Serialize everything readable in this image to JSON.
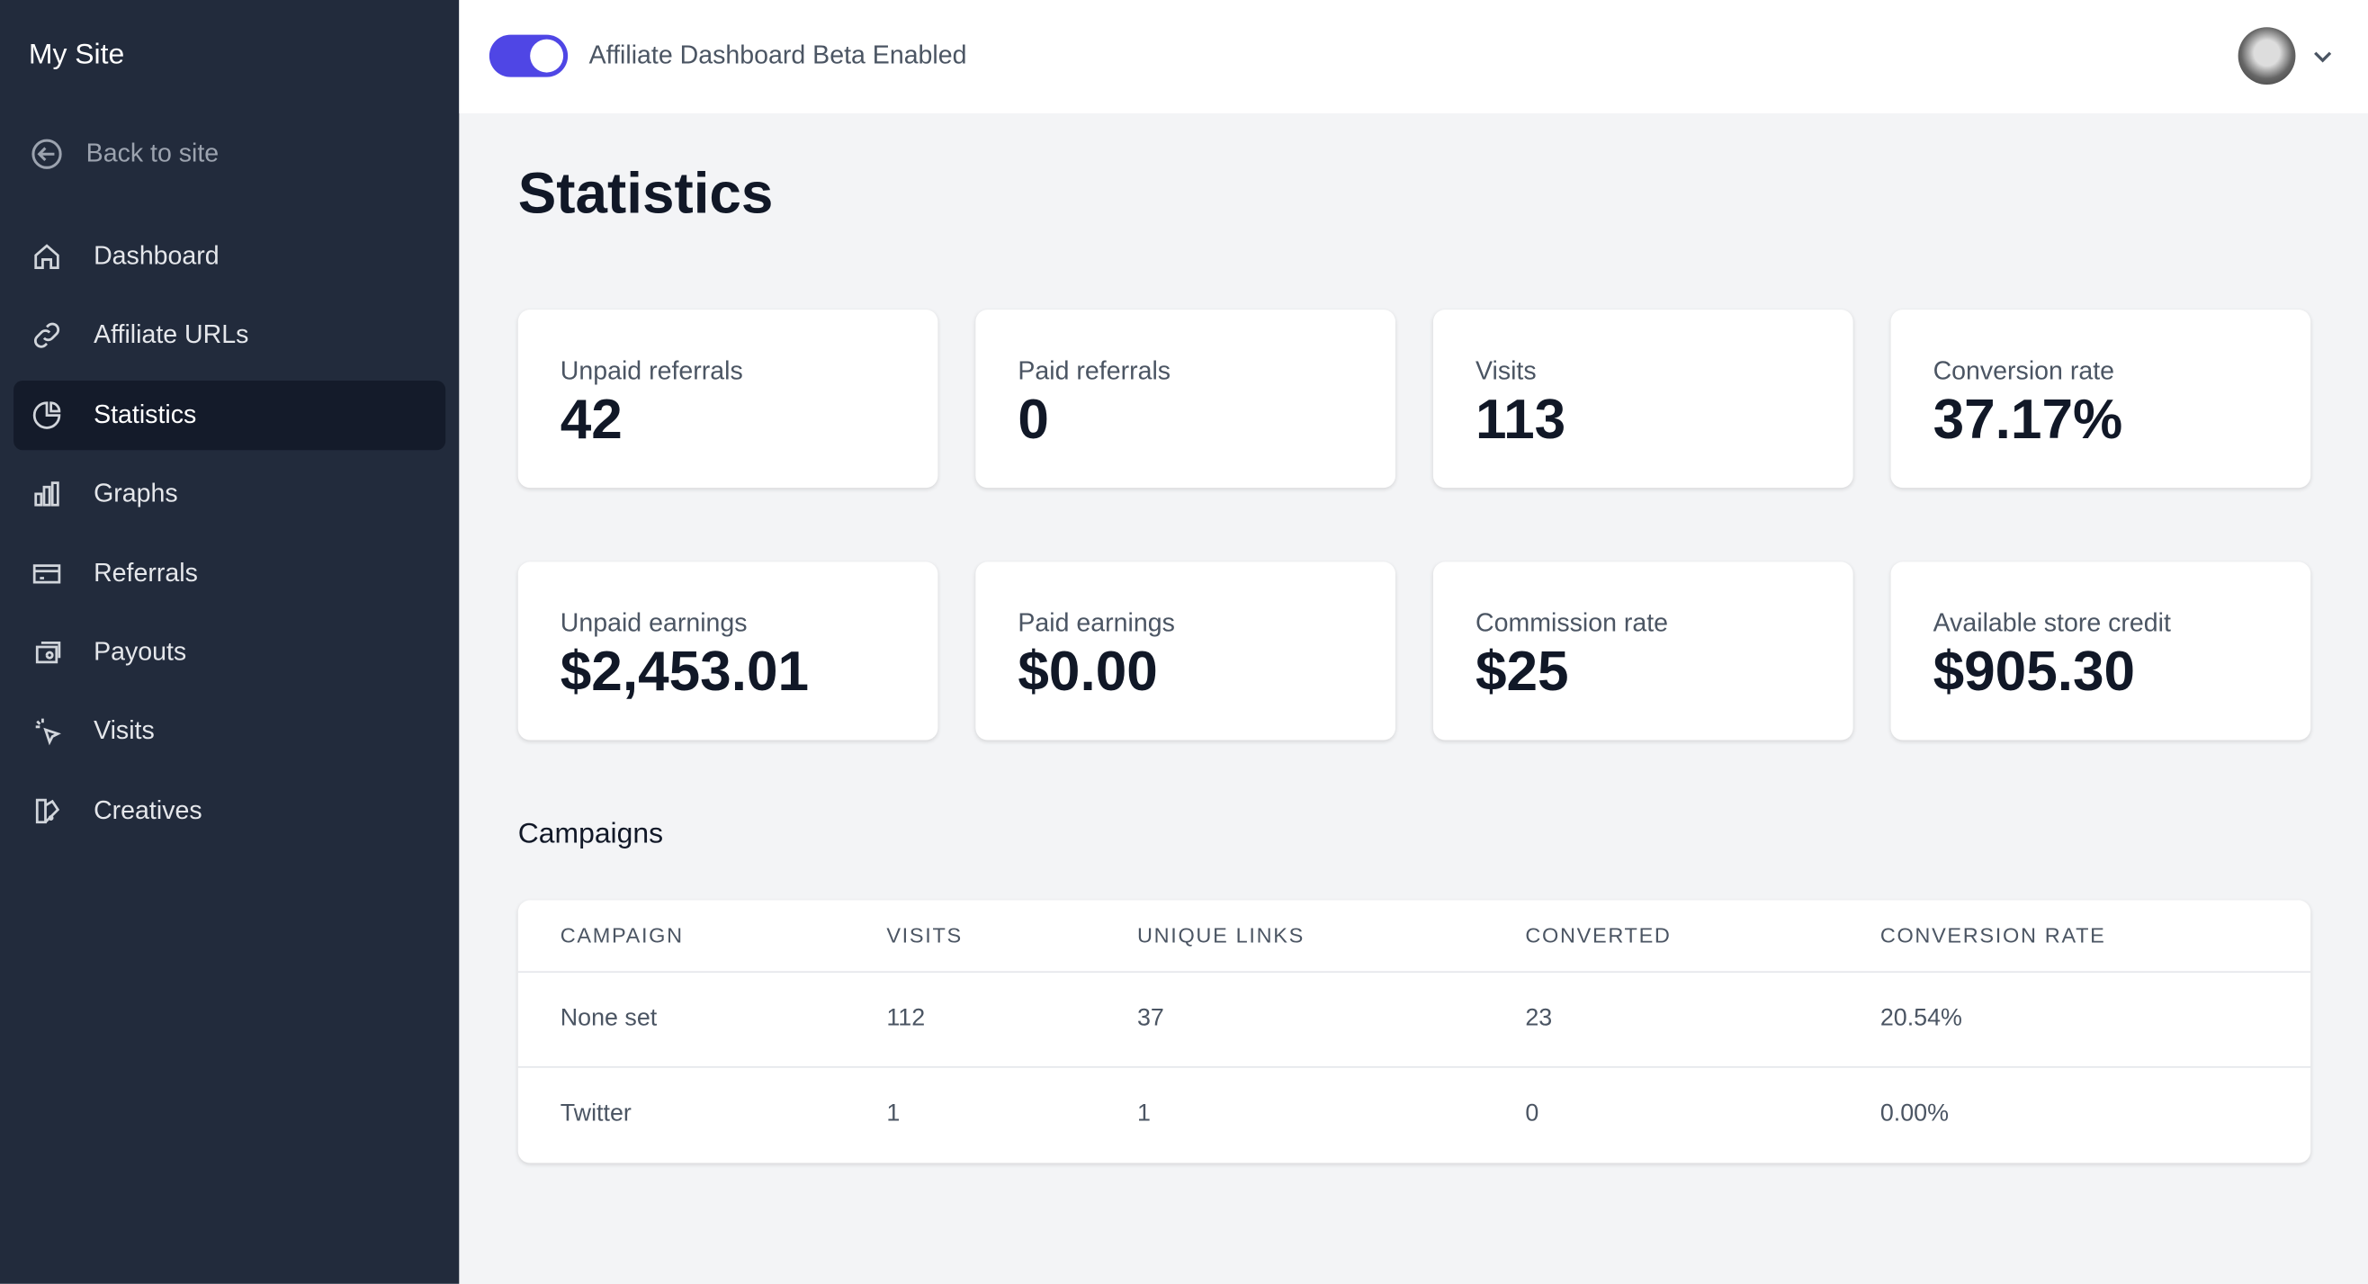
{
  "sidebar": {
    "site_name": "My Site",
    "back_link": "Back to site",
    "nav": [
      {
        "label": "Dashboard"
      },
      {
        "label": "Affiliate URLs"
      },
      {
        "label": "Statistics",
        "active": true
      },
      {
        "label": "Graphs"
      },
      {
        "label": "Referrals"
      },
      {
        "label": "Payouts"
      },
      {
        "label": "Visits"
      },
      {
        "label": "Creatives"
      }
    ]
  },
  "header": {
    "toggle_label": "Affiliate Dashboard Beta Enabled",
    "toggle_on": true
  },
  "page": {
    "title": "Statistics"
  },
  "stats": [
    [
      {
        "label": "Unpaid referrals",
        "value": "42"
      },
      {
        "label": "Paid referrals",
        "value": "0"
      },
      {
        "label": "Visits",
        "value": "113"
      },
      {
        "label": "Conversion rate",
        "value": "37.17%"
      }
    ],
    [
      {
        "label": "Unpaid earnings",
        "value": "$2,453.01"
      },
      {
        "label": "Paid earnings",
        "value": "$0.00"
      },
      {
        "label": "Commission rate",
        "value": "$25"
      },
      {
        "label": "Available store credit",
        "value": "$905.30"
      }
    ]
  ],
  "campaigns": {
    "title": "Campaigns",
    "headers": [
      "CAMPAIGN",
      "VISITS",
      "UNIQUE LINKS",
      "CONVERTED",
      "CONVERSION RATE"
    ],
    "rows": [
      [
        "None set",
        "112",
        "37",
        "23",
        "20.54%"
      ],
      [
        "Twitter",
        "1",
        "1",
        "0",
        "0.00%"
      ]
    ]
  }
}
